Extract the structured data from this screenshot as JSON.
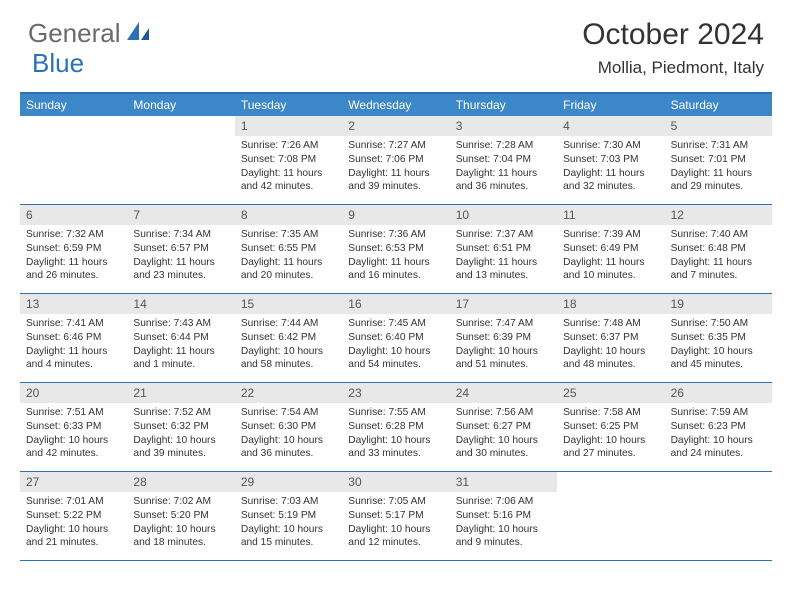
{
  "logo": {
    "part1": "General",
    "part2": "Blue"
  },
  "title": "October 2024",
  "location": "Mollia, Piedmont, Italy",
  "colors": {
    "accent": "#2a71b8",
    "header_bg": "#3b87c8",
    "daynum_bg": "#e8e8e8",
    "text": "#333333",
    "logo_grey": "#6b6b6b"
  },
  "weekdays": [
    "Sunday",
    "Monday",
    "Tuesday",
    "Wednesday",
    "Thursday",
    "Friday",
    "Saturday"
  ],
  "weeks": [
    [
      {
        "num": "",
        "lines": []
      },
      {
        "num": "",
        "lines": []
      },
      {
        "num": "1",
        "lines": [
          "Sunrise: 7:26 AM",
          "Sunset: 7:08 PM",
          "Daylight: 11 hours and 42 minutes."
        ]
      },
      {
        "num": "2",
        "lines": [
          "Sunrise: 7:27 AM",
          "Sunset: 7:06 PM",
          "Daylight: 11 hours and 39 minutes."
        ]
      },
      {
        "num": "3",
        "lines": [
          "Sunrise: 7:28 AM",
          "Sunset: 7:04 PM",
          "Daylight: 11 hours and 36 minutes."
        ]
      },
      {
        "num": "4",
        "lines": [
          "Sunrise: 7:30 AM",
          "Sunset: 7:03 PM",
          "Daylight: 11 hours and 32 minutes."
        ]
      },
      {
        "num": "5",
        "lines": [
          "Sunrise: 7:31 AM",
          "Sunset: 7:01 PM",
          "Daylight: 11 hours and 29 minutes."
        ]
      }
    ],
    [
      {
        "num": "6",
        "lines": [
          "Sunrise: 7:32 AM",
          "Sunset: 6:59 PM",
          "Daylight: 11 hours and 26 minutes."
        ]
      },
      {
        "num": "7",
        "lines": [
          "Sunrise: 7:34 AM",
          "Sunset: 6:57 PM",
          "Daylight: 11 hours and 23 minutes."
        ]
      },
      {
        "num": "8",
        "lines": [
          "Sunrise: 7:35 AM",
          "Sunset: 6:55 PM",
          "Daylight: 11 hours and 20 minutes."
        ]
      },
      {
        "num": "9",
        "lines": [
          "Sunrise: 7:36 AM",
          "Sunset: 6:53 PM",
          "Daylight: 11 hours and 16 minutes."
        ]
      },
      {
        "num": "10",
        "lines": [
          "Sunrise: 7:37 AM",
          "Sunset: 6:51 PM",
          "Daylight: 11 hours and 13 minutes."
        ]
      },
      {
        "num": "11",
        "lines": [
          "Sunrise: 7:39 AM",
          "Sunset: 6:49 PM",
          "Daylight: 11 hours and 10 minutes."
        ]
      },
      {
        "num": "12",
        "lines": [
          "Sunrise: 7:40 AM",
          "Sunset: 6:48 PM",
          "Daylight: 11 hours and 7 minutes."
        ]
      }
    ],
    [
      {
        "num": "13",
        "lines": [
          "Sunrise: 7:41 AM",
          "Sunset: 6:46 PM",
          "Daylight: 11 hours and 4 minutes."
        ]
      },
      {
        "num": "14",
        "lines": [
          "Sunrise: 7:43 AM",
          "Sunset: 6:44 PM",
          "Daylight: 11 hours and 1 minute."
        ]
      },
      {
        "num": "15",
        "lines": [
          "Sunrise: 7:44 AM",
          "Sunset: 6:42 PM",
          "Daylight: 10 hours and 58 minutes."
        ]
      },
      {
        "num": "16",
        "lines": [
          "Sunrise: 7:45 AM",
          "Sunset: 6:40 PM",
          "Daylight: 10 hours and 54 minutes."
        ]
      },
      {
        "num": "17",
        "lines": [
          "Sunrise: 7:47 AM",
          "Sunset: 6:39 PM",
          "Daylight: 10 hours and 51 minutes."
        ]
      },
      {
        "num": "18",
        "lines": [
          "Sunrise: 7:48 AM",
          "Sunset: 6:37 PM",
          "Daylight: 10 hours and 48 minutes."
        ]
      },
      {
        "num": "19",
        "lines": [
          "Sunrise: 7:50 AM",
          "Sunset: 6:35 PM",
          "Daylight: 10 hours and 45 minutes."
        ]
      }
    ],
    [
      {
        "num": "20",
        "lines": [
          "Sunrise: 7:51 AM",
          "Sunset: 6:33 PM",
          "Daylight: 10 hours and 42 minutes."
        ]
      },
      {
        "num": "21",
        "lines": [
          "Sunrise: 7:52 AM",
          "Sunset: 6:32 PM",
          "Daylight: 10 hours and 39 minutes."
        ]
      },
      {
        "num": "22",
        "lines": [
          "Sunrise: 7:54 AM",
          "Sunset: 6:30 PM",
          "Daylight: 10 hours and 36 minutes."
        ]
      },
      {
        "num": "23",
        "lines": [
          "Sunrise: 7:55 AM",
          "Sunset: 6:28 PM",
          "Daylight: 10 hours and 33 minutes."
        ]
      },
      {
        "num": "24",
        "lines": [
          "Sunrise: 7:56 AM",
          "Sunset: 6:27 PM",
          "Daylight: 10 hours and 30 minutes."
        ]
      },
      {
        "num": "25",
        "lines": [
          "Sunrise: 7:58 AM",
          "Sunset: 6:25 PM",
          "Daylight: 10 hours and 27 minutes."
        ]
      },
      {
        "num": "26",
        "lines": [
          "Sunrise: 7:59 AM",
          "Sunset: 6:23 PM",
          "Daylight: 10 hours and 24 minutes."
        ]
      }
    ],
    [
      {
        "num": "27",
        "lines": [
          "Sunrise: 7:01 AM",
          "Sunset: 5:22 PM",
          "Daylight: 10 hours and 21 minutes."
        ]
      },
      {
        "num": "28",
        "lines": [
          "Sunrise: 7:02 AM",
          "Sunset: 5:20 PM",
          "Daylight: 10 hours and 18 minutes."
        ]
      },
      {
        "num": "29",
        "lines": [
          "Sunrise: 7:03 AM",
          "Sunset: 5:19 PM",
          "Daylight: 10 hours and 15 minutes."
        ]
      },
      {
        "num": "30",
        "lines": [
          "Sunrise: 7:05 AM",
          "Sunset: 5:17 PM",
          "Daylight: 10 hours and 12 minutes."
        ]
      },
      {
        "num": "31",
        "lines": [
          "Sunrise: 7:06 AM",
          "Sunset: 5:16 PM",
          "Daylight: 10 hours and 9 minutes."
        ]
      },
      {
        "num": "",
        "lines": []
      },
      {
        "num": "",
        "lines": []
      }
    ]
  ]
}
